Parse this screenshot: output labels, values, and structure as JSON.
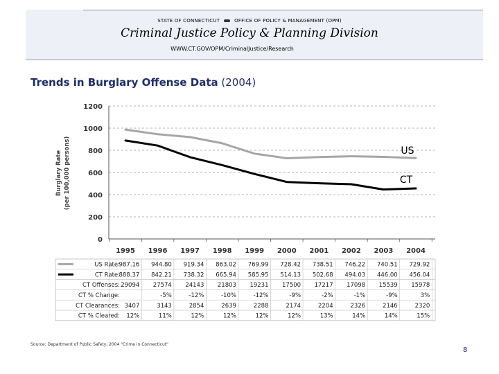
{
  "header": {
    "agency_left": "STATE OF CONNECTICUT",
    "agency_right": "OFFICE OF POLICY & MANAGEMENT (OPM)",
    "division": "Criminal Justice Policy & Planning Division",
    "url": "WWW.CT.GOV/OPM/CriminalJustice/Research"
  },
  "slide": {
    "title_bold": "Trends in Burglary Offense Data",
    "title_year": "(2004)"
  },
  "colors": {
    "us": "#a6a6a6",
    "ct": "#000000",
    "title": "#1f2d6b"
  },
  "chart_data": {
    "type": "line",
    "x": [
      "1995",
      "1996",
      "1997",
      "1998",
      "1999",
      "2000",
      "2001",
      "2002",
      "2003",
      "2004"
    ],
    "ylabel": "Burglary Rate (per 100,000 persons)",
    "ylim": [
      0,
      1200
    ],
    "yticks": [
      "0",
      "200",
      "400",
      "600",
      "800",
      "1000",
      "1200"
    ],
    "grid": true,
    "series": [
      {
        "name": "US",
        "values": [
          987.16,
          944.8,
          919.34,
          863.02,
          769.99,
          728.42,
          738.51,
          746.22,
          740.51,
          729.92
        ]
      },
      {
        "name": "CT",
        "values": [
          888.37,
          842.21,
          738.32,
          665.94,
          585.95,
          514.13,
          502.68,
          494.03,
          446.0,
          456.04
        ]
      }
    ]
  },
  "table": {
    "rows": [
      {
        "label": "US Rate:",
        "cells": [
          "987.16",
          "944.80",
          "919.34",
          "863.02",
          "769.99",
          "728.42",
          "738.51",
          "746.22",
          "740.51",
          "729.92"
        ]
      },
      {
        "label": "CT Rate:",
        "cells": [
          "888.37",
          "842.21",
          "738.32",
          "665.94",
          "585.95",
          "514.13",
          "502.68",
          "494.03",
          "446.00",
          "456.04"
        ]
      },
      {
        "label": "CT Offenses:",
        "cells": [
          "29094",
          "27574",
          "24143",
          "21803",
          "19231",
          "17500",
          "17217",
          "17098",
          "15539",
          "15978"
        ]
      },
      {
        "label": "CT % Change:",
        "cells": [
          "",
          "-5%",
          "-12%",
          "-10%",
          "-12%",
          "-9%",
          "-2%",
          "-1%",
          "-9%",
          "3%"
        ]
      },
      {
        "label": "CT Clearances:",
        "cells": [
          "3407",
          "3143",
          "2854",
          "2639",
          "2288",
          "2174",
          "2204",
          "2326",
          "2146",
          "2320"
        ]
      },
      {
        "label": "CT % Cleared:",
        "cells": [
          "12%",
          "11%",
          "12%",
          "12%",
          "12%",
          "12%",
          "13%",
          "14%",
          "14%",
          "15%"
        ]
      }
    ]
  },
  "footer": {
    "source": "Source: Department of Public Safety, 2004 \"Crime in Connecticut\"",
    "page": "8"
  }
}
